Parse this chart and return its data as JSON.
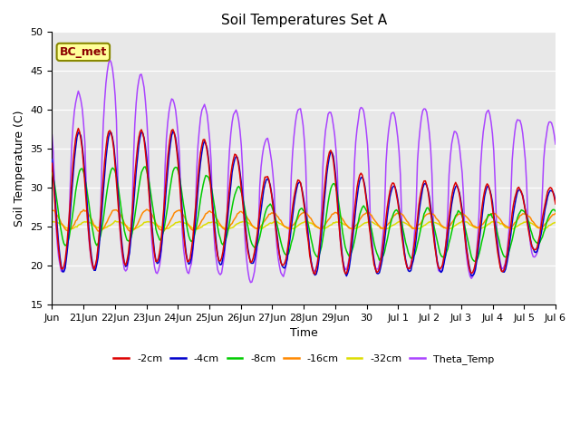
{
  "title": "Soil Temperatures Set A",
  "xlabel": "Time",
  "ylabel": "Soil Temperature (C)",
  "ylim": [
    15,
    50
  ],
  "annotation": "BC_met",
  "bg_color": "#e8e8e8",
  "series_colors": {
    "neg2cm": "#dd0000",
    "neg4cm": "#0000cc",
    "neg8cm": "#00cc00",
    "neg16cm": "#ff8800",
    "neg32cm": "#dddd00",
    "theta": "#aa44ff"
  },
  "legend_labels": [
    "-2cm",
    "-4cm",
    "-8cm",
    "-16cm",
    "-32cm",
    "Theta_Temp"
  ],
  "xtick_positions": [
    0,
    1,
    2,
    3,
    4,
    5,
    6,
    7,
    8,
    9,
    10,
    11,
    12,
    13,
    14,
    15,
    16
  ],
  "xtick_labels": [
    "Jun",
    "21Jun",
    "22Jun",
    "23Jun",
    "24Jun",
    "25Jun",
    "26Jun",
    "27Jun",
    "28Jun",
    "29Jun",
    "30",
    "Jul 1",
    "Jul 2",
    "Jul 3",
    "Jul 4",
    "Jul 5",
    "Jul 6"
  ],
  "ytick_positions": [
    15,
    20,
    25,
    30,
    35,
    40,
    45,
    50
  ],
  "n_days": 16,
  "hours_per_day": 24,
  "peak_peaks_theta": [
    40.5,
    42.5,
    47.0,
    44.0,
    41.0,
    40.5,
    40.0,
    35.5,
    41.0,
    39.5,
    40.5,
    39.5,
    40.5,
    36.5,
    40.5,
    38.5
  ],
  "peak_peaks_surf": [
    37.5,
    37.5,
    37.5,
    37.5,
    37.5,
    36.0,
    34.0,
    31.0,
    31.0,
    35.5,
    31.0,
    30.5,
    31.0,
    30.5,
    30.5,
    30.0
  ],
  "trough_theta": [
    19.0,
    19.5,
    19.5,
    19.0,
    19.0,
    19.5,
    17.5,
    18.5,
    19.0,
    19.5,
    19.5,
    19.5,
    19.5,
    18.0,
    19.0,
    21.0
  ],
  "trough_surf": [
    19.5,
    19.5,
    20.0,
    20.5,
    20.5,
    20.5,
    20.5,
    20.5,
    19.0,
    19.0,
    19.0,
    19.5,
    19.5,
    19.5,
    18.0,
    22.0
  ]
}
